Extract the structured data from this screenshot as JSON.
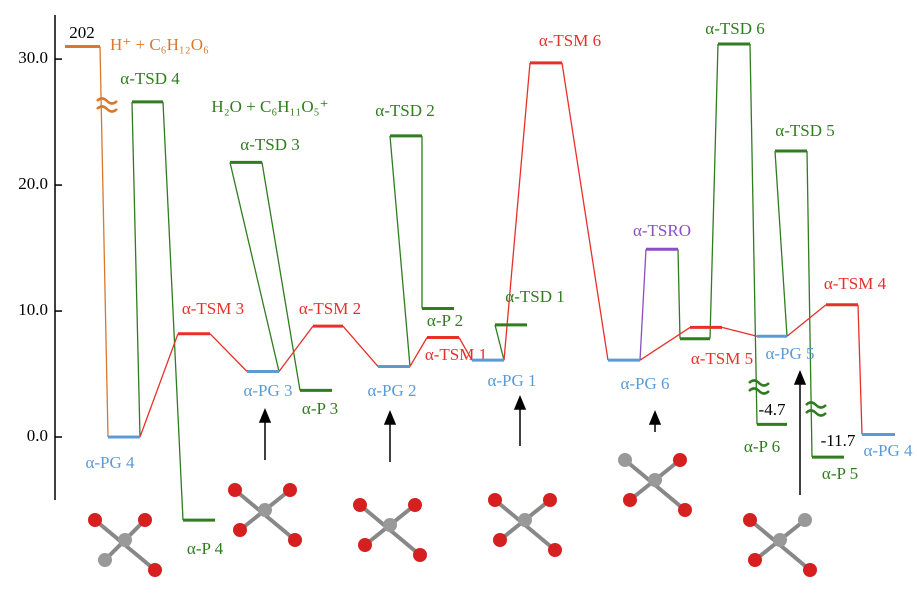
{
  "chart_data": {
    "type": "energy-levels",
    "ylim": [
      -5,
      33.5
    ],
    "yticks": [
      {
        "value": 0,
        "label": "0.0"
      },
      {
        "value": 10,
        "label": "10.0"
      },
      {
        "value": 20,
        "label": "20.0"
      },
      {
        "value": 30,
        "label": "30.0"
      }
    ],
    "levels": [
      {
        "name": "H⁺ + C₆H₁₂O₆",
        "value": 31.0,
        "color": "#d9782d"
      },
      {
        "name": "α-PG 4",
        "value": 0.0,
        "color": "#5b9bd5"
      },
      {
        "name": "α-TSD 4",
        "value": 26.6,
        "color": "#2f7d1f"
      },
      {
        "name": "α-P 4",
        "value": -6.6,
        "color": "#2f7d1f"
      },
      {
        "name": "α-TSM 3",
        "value": 8.2,
        "color": "#e8302a"
      },
      {
        "name": "α-TSD 3",
        "value": 21.8,
        "color": "#2f7d1f"
      },
      {
        "name": "α-PG 3",
        "value": 5.2,
        "color": "#5b9bd5"
      },
      {
        "name": "α-P 3",
        "value": 3.7,
        "color": "#2f7d1f"
      },
      {
        "name": "α-TSM 2",
        "value": 8.8,
        "color": "#e8302a"
      },
      {
        "name": "α-TSD 2",
        "value": 23.9,
        "color": "#2f7d1f"
      },
      {
        "name": "α-PG 2",
        "value": 5.6,
        "color": "#5b9bd5"
      },
      {
        "name": "α-P 2",
        "value": 10.2,
        "color": "#2f7d1f"
      },
      {
        "name": "α-TSM 1",
        "value": 7.9,
        "color": "#e8302a"
      },
      {
        "name": "α-TSD 1",
        "value": 8.9,
        "color": "#2f7d1f"
      },
      {
        "name": "α-PG 1",
        "value": 6.1,
        "color": "#5b9bd5"
      },
      {
        "name": "α-TSM 6",
        "value": 29.7,
        "color": "#e8302a"
      },
      {
        "name": "α-PG 6",
        "value": 6.1,
        "color": "#5b9bd5"
      },
      {
        "name": "α-TSRO",
        "value": 14.9,
        "color": "#8a4fc4"
      },
      {
        "name": null,
        "value": 7.8,
        "color": "#2f7d1f"
      },
      {
        "name": "α-TSM 5",
        "value": 8.7,
        "color": "#e8302a"
      },
      {
        "name": "α-TSD 6",
        "value": 31.2,
        "color": "#2f7d1f"
      },
      {
        "name": "α-PG 5",
        "value": 8.0,
        "color": "#5b9bd5"
      },
      {
        "name": "α-P 6",
        "value": 1.0,
        "color": "#2f7d1f"
      },
      {
        "name": "α-TSD 5",
        "value": 22.7,
        "color": "#2f7d1f"
      },
      {
        "name": "α-TSM 4",
        "value": 10.5,
        "color": "#e8302a"
      },
      {
        "name": "α-P 5",
        "value": -1.6,
        "color": "#2f7d1f"
      },
      {
        "name": "α-PG 4",
        "value": 0.2,
        "color": "#5b9bd5"
      }
    ],
    "annotations": [
      {
        "text": "202",
        "color": "#000000"
      },
      {
        "text": "H₂O + C₆H₁₁O₅⁺",
        "color": "#2f7d1f"
      },
      {
        "text": "-4.7",
        "color": "#000000"
      },
      {
        "text": "-11.7",
        "color": "#000000"
      }
    ]
  }
}
